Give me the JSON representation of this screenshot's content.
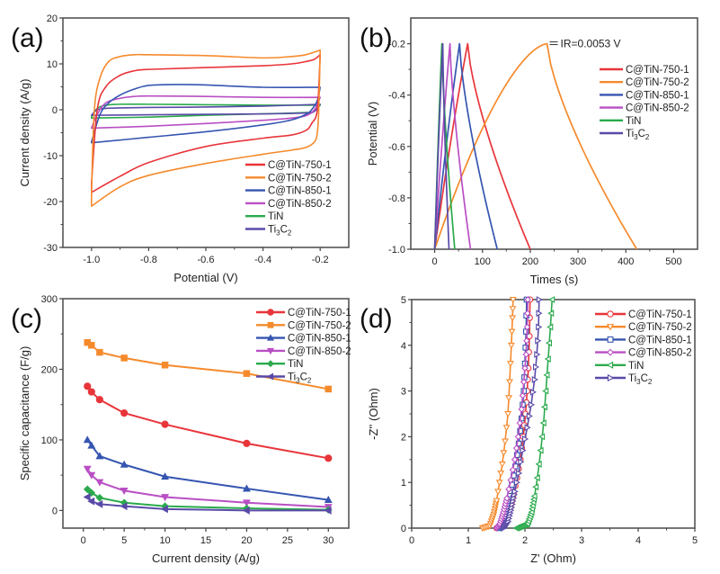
{
  "series_styles": [
    {
      "name": "C@TiN-750-1",
      "color": "#e8353a",
      "marker_c": "circle",
      "marker_d": "circle"
    },
    {
      "name": "C@TiN-750-2",
      "color": "#f58a2c",
      "marker_c": "square",
      "marker_d": "triangle-down"
    },
    {
      "name": "C@TiN-850-1",
      "color": "#3555b0",
      "marker_c": "triangle-up",
      "marker_d": "square"
    },
    {
      "name": "C@TiN-850-2",
      "color": "#b94fc4",
      "marker_c": "triangle-down",
      "marker_d": "diamond"
    },
    {
      "name": "TiN",
      "color": "#2aaa4c",
      "marker_c": "diamond",
      "marker_d": "triangle-left"
    },
    {
      "name": "Ti3C2",
      "color": "#5a4aa8",
      "marker_c": "triangle-left",
      "marker_d": "triangle-right"
    }
  ],
  "legend_labels": [
    {
      "main": "C@TiN-750-1"
    },
    {
      "main": "C@TiN-750-2"
    },
    {
      "main": "C@TiN-850-1"
    },
    {
      "main": "C@TiN-850-2"
    },
    {
      "main": "TiN"
    },
    {
      "main": "Ti",
      "sub1": "3",
      "mid": "C",
      "sub2": "2"
    }
  ],
  "chart_data": [
    {
      "panel": "(a)",
      "type": "line",
      "title": "",
      "xlabel": "Potential (V)",
      "ylabel": "Current density (A/g)",
      "xlim": [
        -1.1,
        -0.1
      ],
      "ylim": [
        -30,
        20
      ],
      "xticks": [
        -1.0,
        -0.8,
        -0.6,
        -0.4,
        -0.2
      ],
      "xtick_labels": [
        "-1.0",
        "-0.8",
        "-0.6",
        "-0.4",
        "-0.2"
      ],
      "yticks": [
        -30,
        -20,
        -10,
        0,
        10,
        20
      ],
      "ytick_labels": [
        "-30",
        "-20",
        "-10",
        "0",
        "10",
        "20"
      ],
      "grid": false,
      "legend": "bottom-right",
      "series": [
        {
          "name": "C@TiN-750-1",
          "upper": {
            "x": [
              -1.0,
              -0.98,
              -0.95,
              -0.9,
              -0.85,
              -0.8,
              -0.6,
              -0.4,
              -0.3,
              -0.25,
              -0.22,
              -0.2
            ],
            "y": [
              -16,
              0,
              5,
              7.5,
              8.5,
              8.8,
              9.2,
              9.6,
              10,
              10.5,
              11,
              12
            ]
          },
          "lower": {
            "x": [
              -0.2,
              -0.21,
              -0.23,
              -0.25,
              -0.3,
              -0.4,
              -0.6,
              -0.8,
              -0.9,
              -1.0
            ],
            "y": [
              12,
              0,
              -3,
              -4.5,
              -5.5,
              -6.2,
              -8,
              -11.5,
              -14.5,
              -18
            ]
          }
        },
        {
          "name": "C@TiN-750-2",
          "upper": {
            "x": [
              -1.0,
              -0.99,
              -0.97,
              -0.94,
              -0.9,
              -0.85,
              -0.8,
              -0.6,
              -0.4,
              -0.3,
              -0.25,
              -0.2
            ],
            "y": [
              -18,
              0,
              7,
              10.5,
              11.6,
              12,
              12,
              11.8,
              11.3,
              11.6,
              12,
              13
            ]
          },
          "lower": {
            "x": [
              -0.2,
              -0.205,
              -0.21,
              -0.22,
              -0.25,
              -0.3,
              -0.4,
              -0.6,
              -0.8,
              -0.9,
              -1.0
            ],
            "y": [
              13,
              0,
              -5,
              -7,
              -8.2,
              -8.8,
              -9.7,
              -11.7,
              -14.3,
              -16.8,
              -21
            ]
          }
        },
        {
          "name": "C@TiN-850-1",
          "upper": {
            "x": [
              -1.0,
              -0.97,
              -0.94,
              -0.9,
              -0.85,
              -0.8,
              -0.7,
              -0.6,
              -0.4,
              -0.2
            ],
            "y": [
              -7,
              -1,
              1.5,
              3.2,
              4.5,
              5.3,
              5.5,
              5.4,
              4.9,
              4.9
            ]
          },
          "lower": {
            "x": [
              -0.2,
              -0.21,
              -0.23,
              -0.25,
              -0.3,
              -0.4,
              -0.6,
              -0.8,
              -1.0
            ],
            "y": [
              4.9,
              2,
              0,
              -1,
              -2.2,
              -3.3,
              -4.8,
              -6,
              -7.2
            ]
          }
        },
        {
          "name": "C@TiN-850-2",
          "upper": {
            "x": [
              -1.0,
              -0.98,
              -0.95,
              -0.9,
              -0.85,
              -0.8,
              -0.6,
              -0.4,
              -0.2
            ],
            "y": [
              -4,
              -1,
              1.5,
              2.5,
              2.9,
              3,
              2.9,
              2.7,
              2.7
            ]
          },
          "lower": {
            "x": [
              -0.2,
              -0.22,
              -0.25,
              -0.3,
              -0.4,
              -0.6,
              -0.8,
              -1.0
            ],
            "y": [
              2.7,
              0,
              -1.3,
              -1.8,
              -2.3,
              -3,
              -3.6,
              -4
            ]
          }
        },
        {
          "name": "TiN",
          "upper": {
            "x": [
              -1.0,
              -0.98,
              -0.95,
              -0.9,
              -0.8,
              -0.6,
              -0.4,
              -0.2
            ],
            "y": [
              -1.5,
              0.3,
              1,
              1.2,
              1.2,
              1.1,
              1.0,
              1.0
            ]
          },
          "lower": {
            "x": [
              -0.2,
              -0.22,
              -0.25,
              -0.4,
              -0.6,
              -0.8,
              -1.0
            ],
            "y": [
              1.0,
              -0.3,
              -0.6,
              -0.9,
              -1.2,
              -1.6,
              -1.8
            ]
          }
        },
        {
          "name": "Ti3C2",
          "upper": {
            "x": [
              -1.0,
              -0.98,
              -0.95,
              -0.9,
              -0.8,
              -0.6,
              -0.4,
              -0.2
            ],
            "y": [
              -1.2,
              0,
              0.3,
              0.4,
              0.5,
              0.6,
              0.8,
              1.2
            ]
          },
          "lower": {
            "x": [
              -0.2,
              -0.22,
              -0.25,
              -0.4,
              -0.6,
              -0.8,
              -1.0
            ],
            "y": [
              1.2,
              -0.3,
              -0.7,
              -0.9,
              -1.0,
              -1.1,
              -1.2
            ]
          }
        }
      ]
    },
    {
      "panel": "(b)",
      "type": "line",
      "title": "",
      "xlabel": "Times (s)",
      "ylabel": "Potential (V)",
      "xlim": [
        -50,
        550
      ],
      "ylim": [
        -1.0,
        -0.1
      ],
      "xticks": [
        0,
        100,
        200,
        300,
        400,
        500
      ],
      "xtick_labels": [
        "0",
        "100",
        "200",
        "300",
        "400",
        "500"
      ],
      "yticks": [
        -1.0,
        -0.8,
        -0.6,
        -0.4,
        -0.2
      ],
      "ytick_labels": [
        "-1.0",
        "-0.8",
        "-0.6",
        "-0.4",
        "-0.2"
      ],
      "grid": false,
      "legend": "top-right",
      "annotation": "IR=0.0053 V",
      "series": [
        {
          "name": "C@TiN-750-1",
          "peak_time": 69,
          "end_time": 200,
          "shape": "gcd"
        },
        {
          "name": "C@TiN-750-2",
          "peak_time": 235,
          "end_time": 423,
          "shape": "gcd"
        },
        {
          "name": "C@TiN-850-1",
          "peak_time": 52,
          "end_time": 131,
          "shape": "gcd"
        },
        {
          "name": "C@TiN-850-2",
          "peak_time": 32,
          "end_time": 75,
          "shape": "gcd"
        },
        {
          "name": "TiN",
          "peak_time": 15,
          "end_time": 42,
          "shape": "gcd"
        },
        {
          "name": "Ti3C2",
          "peak_time": 17,
          "end_time": 30,
          "shape": "gcd"
        }
      ],
      "v_min": -1.0,
      "v_max": -0.2
    },
    {
      "panel": "(c)",
      "type": "line",
      "title": "",
      "xlabel": "Current density (A/g)",
      "ylabel": "Specific capacitance (F/g)",
      "xlim": [
        -2.5,
        32.5
      ],
      "ylim": [
        -25,
        300
      ],
      "xticks": [
        0,
        5,
        10,
        15,
        20,
        25,
        30
      ],
      "xtick_labels": [
        "0",
        "5",
        "10",
        "15",
        "20",
        "25",
        "30"
      ],
      "yticks": [
        0,
        100,
        200,
        300
      ],
      "ytick_labels": [
        "0",
        "100",
        "200",
        "300"
      ],
      "grid": false,
      "legend": "top-right",
      "x": [
        0.5,
        1,
        2,
        5,
        10,
        20,
        30
      ],
      "series": [
        {
          "name": "C@TiN-750-1",
          "values": [
            176,
            168,
            157,
            138,
            122,
            95,
            74
          ]
        },
        {
          "name": "C@TiN-750-2",
          "values": [
            238,
            234,
            224,
            216,
            206,
            194,
            172
          ]
        },
        {
          "name": "C@TiN-850-1",
          "values": [
            100,
            92,
            77,
            65,
            48,
            31,
            15
          ]
        },
        {
          "name": "C@TiN-850-2",
          "values": [
            59,
            50,
            40,
            28,
            19,
            11,
            5
          ]
        },
        {
          "name": "TiN",
          "values": [
            30,
            25,
            18,
            11,
            6,
            3,
            1
          ]
        },
        {
          "name": "Ti3C2",
          "values": [
            19,
            13,
            9,
            6,
            2,
            0,
            0
          ]
        }
      ]
    },
    {
      "panel": "(d)",
      "type": "scatter",
      "title": "",
      "xlabel": "Z' (Ohm)",
      "ylabel": "-Z'' (Ohm)",
      "xlim": [
        0,
        5
      ],
      "ylim": [
        0,
        5
      ],
      "xticks": [
        0,
        1,
        2,
        3,
        4,
        5
      ],
      "xtick_labels": [
        "0",
        "1",
        "2",
        "3",
        "4",
        "5"
      ],
      "yticks": [
        0,
        1,
        2,
        3,
        4,
        5
      ],
      "ytick_labels": [
        "0",
        "1",
        "2",
        "3",
        "4",
        "5"
      ],
      "grid": false,
      "legend": "top-right",
      "series": [
        {
          "name": "C@TiN-750-1",
          "x": [
            1.5,
            1.6,
            1.68,
            1.74,
            1.8,
            1.86,
            1.92,
            1.97,
            2.01,
            2.04,
            2.06,
            2.08,
            2.09
          ],
          "y": [
            0,
            0.05,
            0.2,
            0.45,
            0.75,
            1.1,
            1.5,
            2.0,
            2.5,
            3.0,
            3.5,
            4.2,
            5.0
          ]
        },
        {
          "name": "C@TiN-750-2",
          "x": [
            1.25,
            1.38,
            1.45,
            1.5,
            1.55,
            1.6,
            1.65,
            1.7,
            1.73,
            1.76,
            1.78,
            1.79
          ],
          "y": [
            0,
            0.05,
            0.3,
            0.6,
            1.0,
            1.4,
            1.9,
            2.5,
            3.2,
            4.0,
            4.6,
            5.0
          ]
        },
        {
          "name": "C@TiN-850-1",
          "x": [
            1.55,
            1.62,
            1.67,
            1.72,
            1.77,
            1.83,
            1.89,
            1.94,
            1.98,
            2.0,
            2.02,
            2.03
          ],
          "y": [
            0,
            0.1,
            0.3,
            0.6,
            0.95,
            1.35,
            1.85,
            2.4,
            3.0,
            3.6,
            4.3,
            5.0
          ]
        },
        {
          "name": "C@TiN-850-2",
          "x": [
            1.5,
            1.56,
            1.62,
            1.68,
            1.75,
            1.82,
            1.88,
            1.94,
            1.98,
            2.02,
            2.04,
            2.05
          ],
          "y": [
            0,
            0.1,
            0.35,
            0.65,
            1.05,
            1.5,
            2.0,
            2.6,
            3.2,
            3.8,
            4.4,
            5.0
          ]
        },
        {
          "name": "TiN",
          "x": [
            1.85,
            1.95,
            2.05,
            2.12,
            2.17,
            2.22,
            2.28,
            2.33,
            2.37,
            2.41,
            2.45,
            2.48
          ],
          "y": [
            0,
            0.05,
            0.1,
            0.35,
            0.7,
            1.1,
            1.7,
            2.3,
            3.0,
            3.7,
            4.4,
            5.0
          ]
        },
        {
          "name": "Ti3C2",
          "x": [
            1.62,
            1.7,
            1.76,
            1.82,
            1.89,
            1.96,
            2.04,
            2.11,
            2.17,
            2.21,
            2.24,
            2.25
          ],
          "y": [
            0,
            0.15,
            0.45,
            0.8,
            1.2,
            1.7,
            2.2,
            2.7,
            3.25,
            3.8,
            4.4,
            5.0
          ]
        }
      ]
    }
  ]
}
